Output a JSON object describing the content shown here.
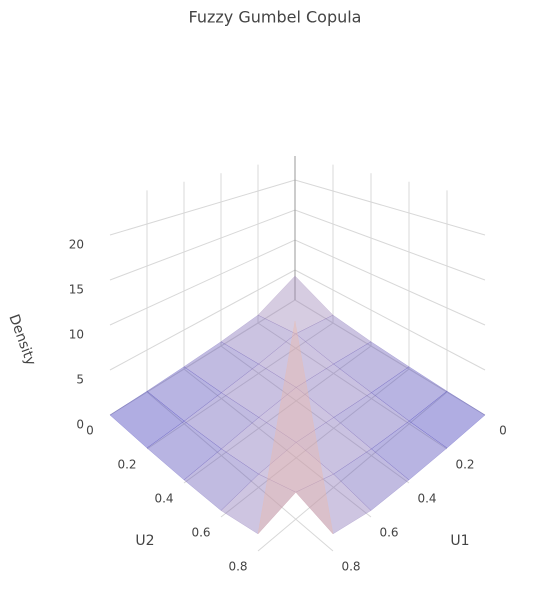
{
  "chart_data": {
    "type": "surface",
    "title": "Fuzzy Gumbel Copula",
    "xlabel": "U1",
    "ylabel": "U2",
    "zlabel": "Density",
    "x": [
      0,
      0.2,
      0.4,
      0.6,
      0.8,
      1
    ],
    "y": [
      0,
      0.2,
      0.4,
      0.6,
      0.8,
      1
    ],
    "z": [
      [
        4,
        1.2,
        0.6,
        0.3,
        0.1,
        0
      ],
      [
        1.2,
        2,
        1.2,
        0.7,
        0.3,
        0.1
      ],
      [
        0.6,
        1.2,
        1.6,
        1.2,
        0.7,
        0.3
      ],
      [
        0.3,
        0.7,
        1.2,
        1.6,
        1.3,
        0.6
      ],
      [
        0.1,
        0.3,
        0.7,
        1.3,
        2.5,
        1.5
      ],
      [
        0,
        0.1,
        0.3,
        0.6,
        1.5,
        22
      ]
    ],
    "xlim": [
      0,
      1
    ],
    "ylim": [
      0,
      1
    ],
    "zlim": [
      0,
      24
    ],
    "xticks": [
      0,
      0.2,
      0.4,
      0.6,
      0.8
    ],
    "yticks": [
      0,
      0.2,
      0.4,
      0.6,
      0.8
    ],
    "zticks": [
      0,
      5,
      10,
      15,
      20
    ],
    "colorscale": [
      "#1a1ab8",
      "#f0c4b0",
      "#c83232"
    ],
    "opacity": 0.4,
    "grid": true
  }
}
